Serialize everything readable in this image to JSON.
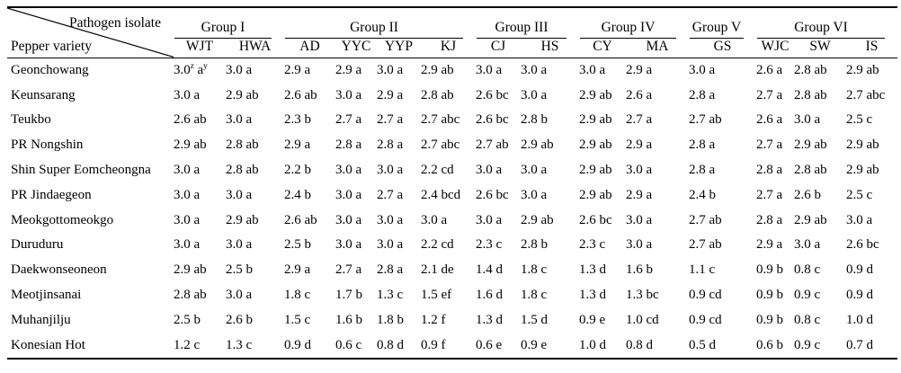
{
  "colors": {
    "text": "#000000",
    "background": "#ffffff",
    "rule": "#000000"
  },
  "table": {
    "corner": {
      "top_label": "Pathogen isolate",
      "bottom_label": "Pepper variety"
    },
    "groups": [
      {
        "label": "Group I",
        "isolates": [
          "WJT",
          "HWA"
        ]
      },
      {
        "label": "Group II",
        "isolates": [
          "AD",
          "YYC",
          "YYP",
          "KJ"
        ]
      },
      {
        "label": "Group III",
        "isolates": [
          "CJ",
          "HS"
        ]
      },
      {
        "label": "Group IV",
        "isolates": [
          "CY",
          "MA"
        ]
      },
      {
        "label": "Group V",
        "isolates": [
          "GS"
        ]
      },
      {
        "label": "Group VI",
        "isolates": [
          "WJC",
          "SW",
          "IS"
        ]
      }
    ],
    "rows": [
      {
        "variety": "Geonchowang",
        "values": [
          "3.0^z a^y",
          "3.0 a",
          "2.9 a",
          "2.9 a",
          "3.0 a",
          "2.9 ab",
          "3.0 a",
          "3.0 a",
          "3.0 a",
          "2.9 a",
          "3.0 a",
          "2.6 a",
          "2.8 ab",
          "2.9 ab"
        ]
      },
      {
        "variety": "Keunsarang",
        "values": [
          "3.0 a",
          "2.9 ab",
          "2.6 ab",
          "3.0 a",
          "2.9 a",
          "2.8 ab",
          "2.6 bc",
          "3.0 a",
          "2.9 ab",
          "2.6 a",
          "2.8 a",
          "2.7 a",
          "2.8 ab",
          "2.7 abc"
        ]
      },
      {
        "variety": "Teukbo",
        "values": [
          "2.6 ab",
          "3.0 a",
          "2.3 b",
          "2.7 a",
          "2.7 a",
          "2.7 abc",
          "2.6 bc",
          "2.8 b",
          "2.9 ab",
          "2.7 a",
          "2.7 ab",
          "2.6 a",
          "3.0 a",
          "2.5 c"
        ]
      },
      {
        "variety": "PR Nongshin",
        "values": [
          "2.9 ab",
          "2.8 ab",
          "2.9 a",
          "2.8 a",
          "2.8 a",
          "2.7 abc",
          "2.7 ab",
          "2.9 ab",
          "2.9 ab",
          "2.9 a",
          "2.8 a",
          "2.7 a",
          "2.9 ab",
          "2.9 ab"
        ]
      },
      {
        "variety": "Shin Super Eomcheongna",
        "values": [
          "3.0 a",
          "2.8 ab",
          "2.2 b",
          "3.0 a",
          "3.0 a",
          "2.2 cd",
          "3.0 a",
          "3.0 a",
          "2.9 ab",
          "3.0 a",
          "2.8 a",
          "2.8 a",
          "2.8 ab",
          "2.9 ab"
        ]
      },
      {
        "variety": "PR Jindaegeon",
        "values": [
          "3.0 a",
          "3.0 a",
          "2.4 b",
          "3.0 a",
          "2.7 a",
          "2.4 bcd",
          "2.6 bc",
          "3.0 a",
          "2.9 ab",
          "2.9 a",
          "2.4 b",
          "2.7 a",
          "2.6 b",
          "2.5 c"
        ]
      },
      {
        "variety": "Meokgottomeokgo",
        "values": [
          "3.0 a",
          "2.9 ab",
          "2.6 ab",
          "3.0 a",
          "3.0 a",
          "3.0 a",
          "3.0 a",
          "2.9 ab",
          "2.6 bc",
          "3.0 a",
          "2.7 ab",
          "2.8 a",
          "2.9 ab",
          "3.0 a"
        ]
      },
      {
        "variety": "Duruduru",
        "values": [
          "3.0 a",
          "3.0 a",
          "2.5 b",
          "3.0 a",
          "3.0 a",
          "2.2 cd",
          "2.3 c",
          "2.8 b",
          "2.3 c",
          "3.0 a",
          "2.7 ab",
          "2.9 a",
          "3.0 a",
          "2.6 bc"
        ]
      },
      {
        "variety": "Daekwonseoneon",
        "values": [
          "2.9 ab",
          "2.5 b",
          "2.9 a",
          "2.7 a",
          "2.8 a",
          "2.1 de",
          "1.4 d",
          "1.8 c",
          "1.3 d",
          "1.6 b",
          "1.1 c",
          "0.9 b",
          "0.8 c",
          "0.9 d"
        ]
      },
      {
        "variety": "Meotjinsanai",
        "values": [
          "2.8 ab",
          "3.0 a",
          "1.8 c",
          "1.7 b",
          "1.3 c",
          "1.5 ef",
          "1.6 d",
          "1.8 c",
          "1.3 d",
          "1.3 bc",
          "0.9 cd",
          "0.9 b",
          "0.9 c",
          "0.9 d"
        ]
      },
      {
        "variety": "Muhanjilju",
        "values": [
          "2.5 b",
          "2.6 b",
          "1.5 c",
          "1.6 b",
          "1.8 b",
          "1.2 f",
          "1.3 d",
          "1.5 d",
          "0.9 e",
          "1.0 cd",
          "0.9 cd",
          "0.9 b",
          "0.8 c",
          "1.0 d"
        ]
      },
      {
        "variety": "Konesian Hot",
        "values": [
          "1.2 c",
          "1.3 c",
          "0.9 d",
          "0.6 c",
          "0.8 d",
          "0.9 f",
          "0.6 e",
          "0.9 e",
          "1.0 d",
          "0.8 d",
          "0.5 d",
          "0.6 b",
          "0.9 c",
          "0.7 d"
        ]
      }
    ]
  }
}
